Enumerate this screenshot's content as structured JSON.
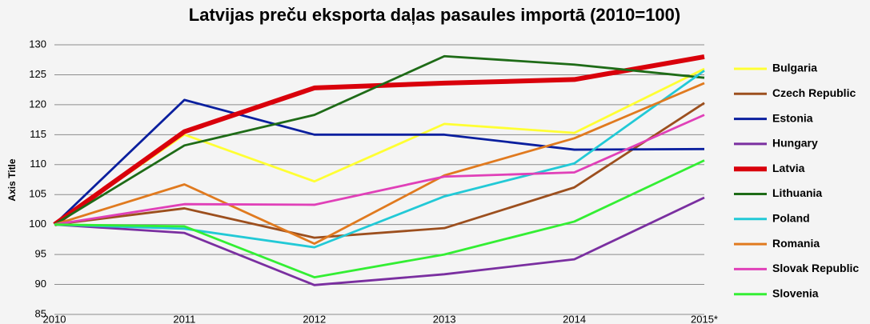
{
  "chart_data": {
    "type": "line",
    "title": "Latvijas preču eksporta daļas pasaules importā (2010=100)",
    "y_label": "Axis Title",
    "categories": [
      "2010",
      "2011",
      "2012",
      "2013",
      "2014",
      "2015*"
    ],
    "ylim": [
      85,
      130
    ],
    "yticks": [
      85,
      90,
      95,
      100,
      105,
      110,
      115,
      120,
      125,
      130
    ],
    "grid": true,
    "legend": "right",
    "series": [
      {
        "name": "Bulgaria",
        "color": "#ffff33",
        "values": [
          100,
          115,
          107.2,
          116.8,
          115.3,
          126
        ]
      },
      {
        "name": "Czech Republic",
        "color": "#9c4f1e",
        "values": [
          100,
          102.7,
          97.8,
          99.4,
          106.2,
          120.3
        ]
      },
      {
        "name": "Estonia",
        "color": "#0a1f9e",
        "values": [
          100,
          120.8,
          115,
          115,
          112.5,
          112.6
        ]
      },
      {
        "name": "Hungary",
        "color": "#7a2fa0",
        "values": [
          100,
          98.6,
          89.9,
          91.7,
          94.2,
          104.5
        ]
      },
      {
        "name": "Latvia",
        "color": "#d9000b",
        "bold": true,
        "values": [
          100,
          115.5,
          122.8,
          123.6,
          124.2,
          128
        ]
      },
      {
        "name": "Lithuania",
        "color": "#1e6b17",
        "values": [
          100,
          113.2,
          118.3,
          128.1,
          126.7,
          124.5
        ]
      },
      {
        "name": "Poland",
        "color": "#22c9d6",
        "values": [
          100,
          99.3,
          96.2,
          104.7,
          110.2,
          125.7
        ]
      },
      {
        "name": "Romania",
        "color": "#e07a1f",
        "values": [
          100,
          106.7,
          96.8,
          108.2,
          114.4,
          123.6
        ]
      },
      {
        "name": "Slovak Republic",
        "color": "#e040b8",
        "values": [
          100,
          103.4,
          103.3,
          108,
          108.7,
          118.3
        ]
      },
      {
        "name": "Slovenia",
        "color": "#33ee33",
        "values": [
          100,
          99.7,
          91.2,
          95,
          100.5,
          110.7
        ]
      }
    ]
  }
}
